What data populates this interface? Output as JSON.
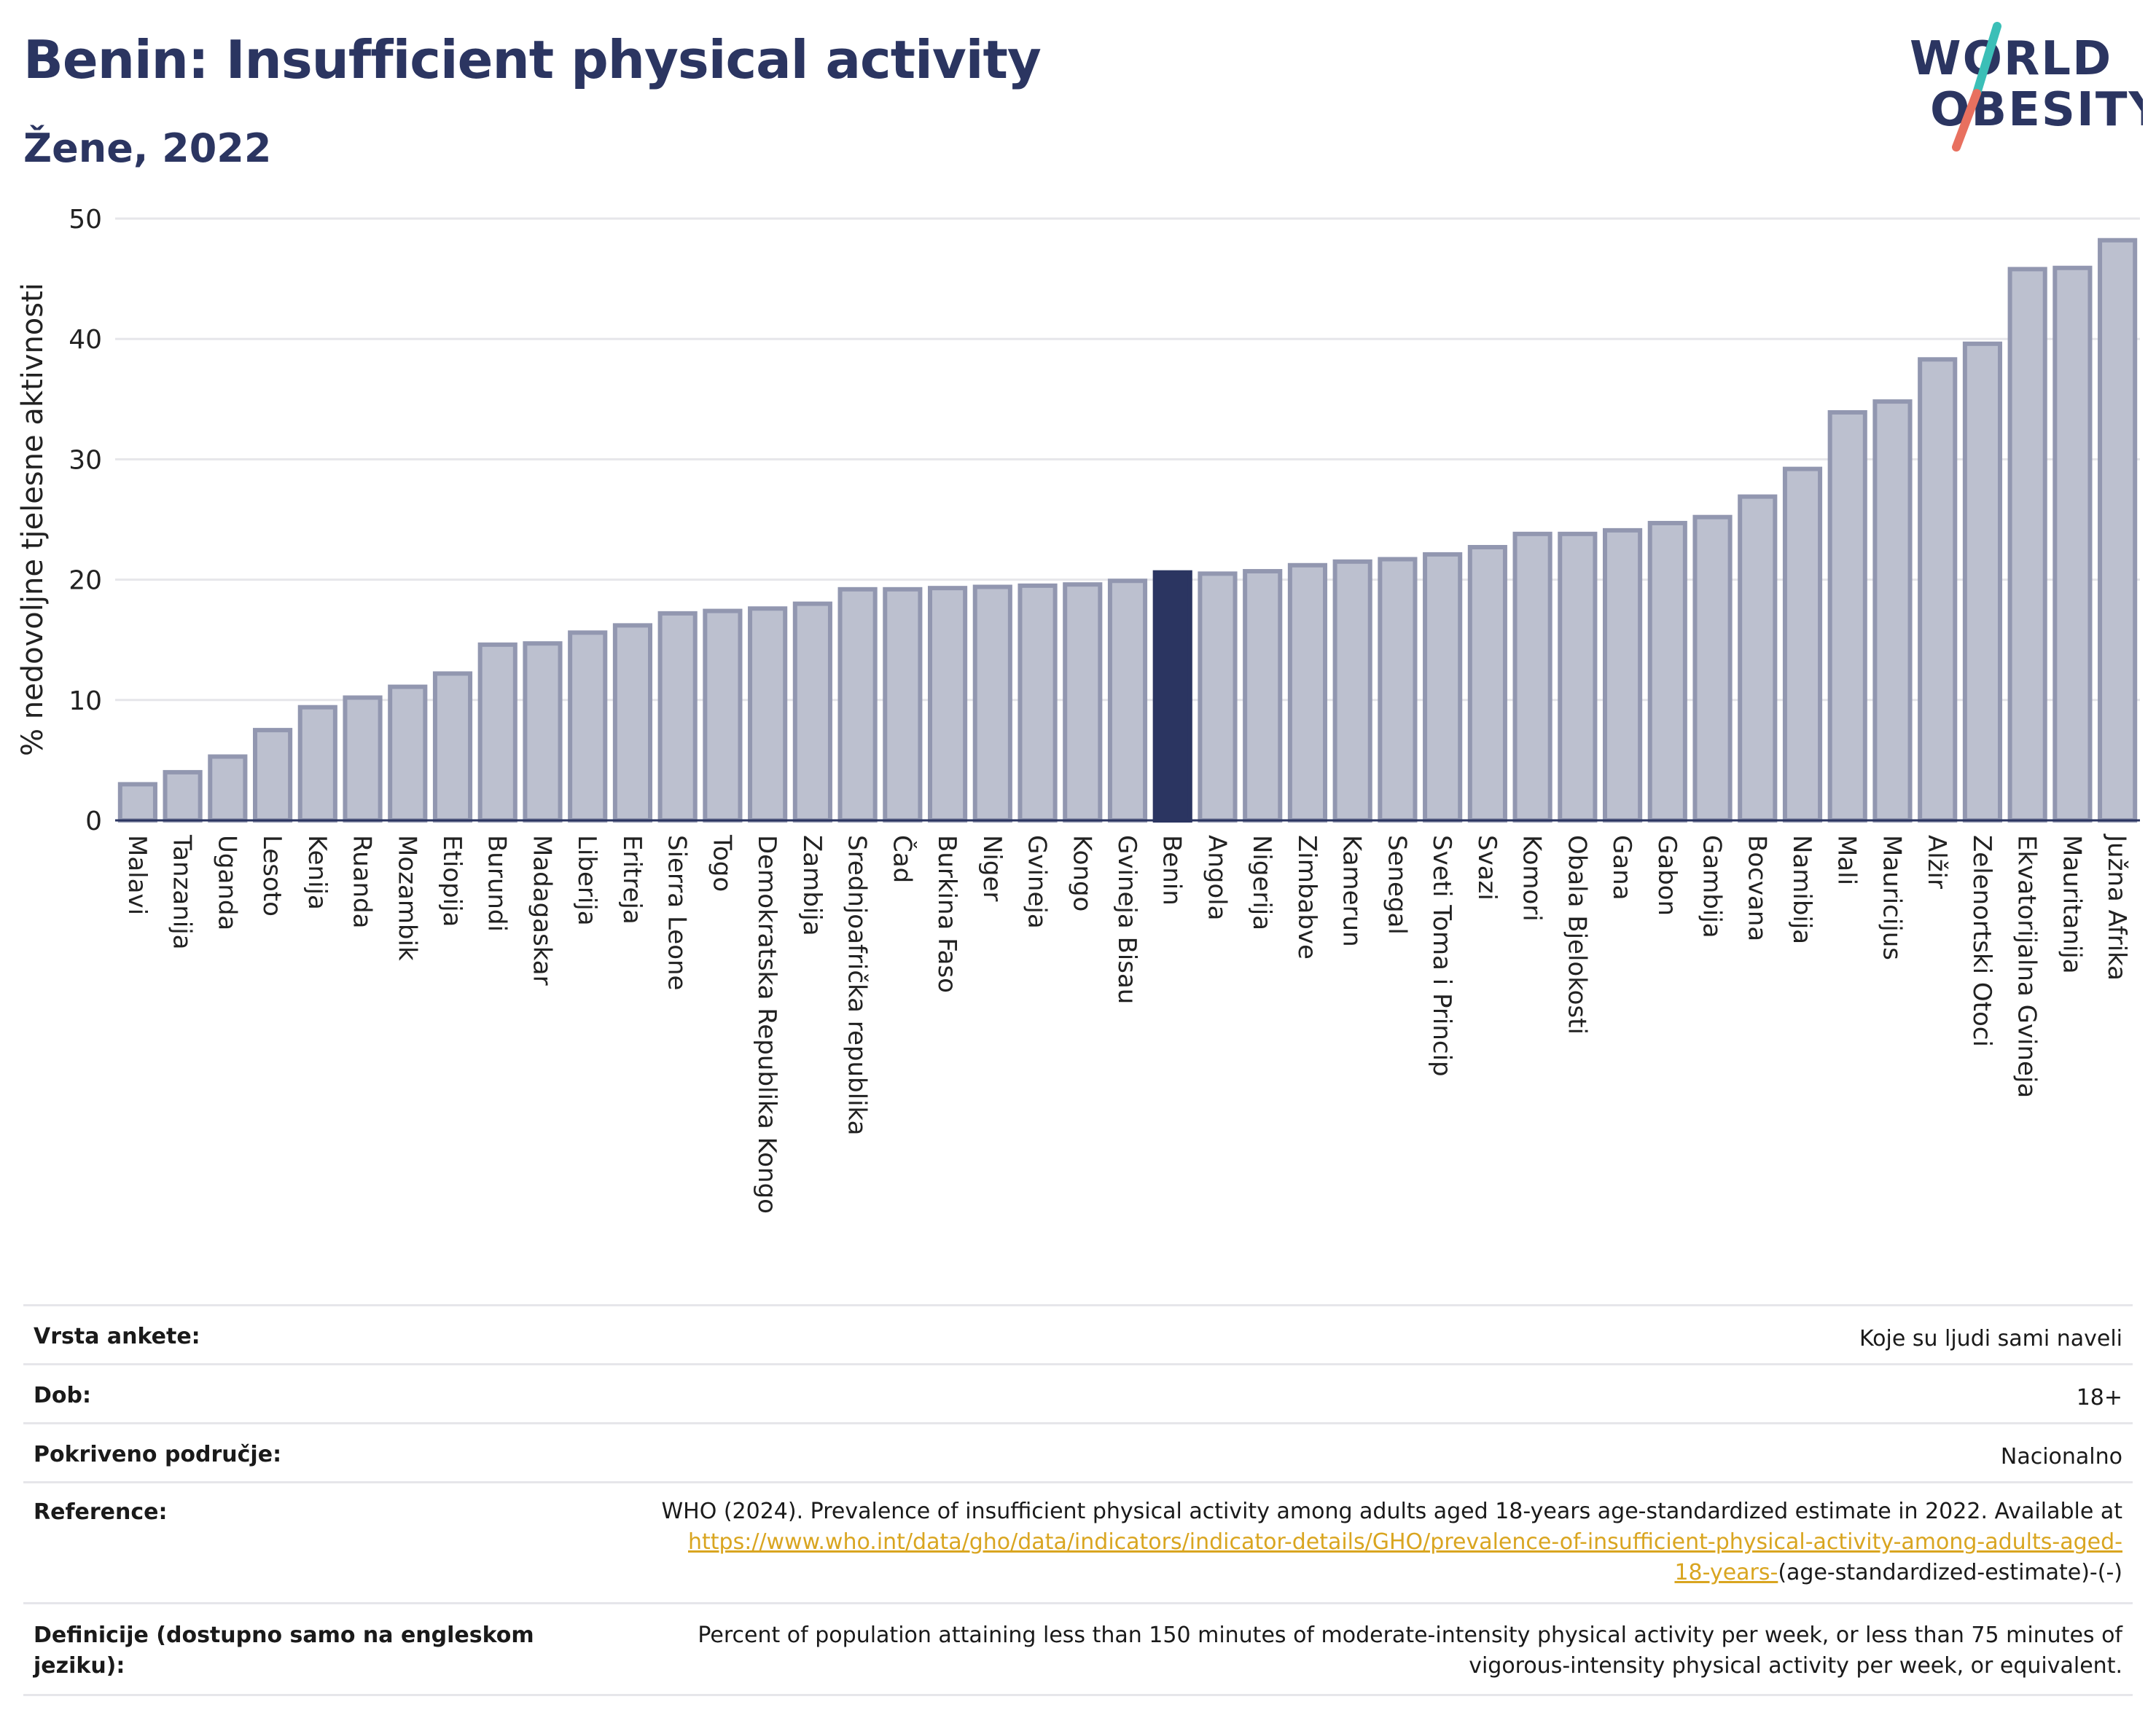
{
  "header": {
    "title": "Benin: Insufficient physical activity",
    "subtitle": "Žene, 2022",
    "logo_line1": "WORLD",
    "logo_line2": "OBESITY"
  },
  "colors": {
    "title": "#2b3561",
    "bar_default": "#bcc0cf",
    "bar_default_stroke": "#9297b0",
    "bar_highlight": "#2b3561",
    "logo_teal": "#3bbfb7",
    "logo_coral": "#e8705f",
    "link": "#d9a520"
  },
  "chart_data": {
    "type": "bar",
    "title": "",
    "xlabel": "",
    "ylabel": "% nedovoljne tjelesne aktivnosti",
    "ylim": [
      0,
      50
    ],
    "yticks": [
      0,
      10,
      20,
      30,
      40,
      50
    ],
    "grid": true,
    "highlight": "Benin",
    "categories": [
      "Malavi",
      "Tanzanija",
      "Uganda",
      "Lesoto",
      "Kenija",
      "Ruanda",
      "Mozambik",
      "Etiopija",
      "Burundi",
      "Madagaskar",
      "Liberija",
      "Eritreja",
      "Sierra Leone",
      "Togo",
      "Demokratska Republika Kongo",
      "Zambija",
      "Srednjoafrička republika",
      "Čad",
      "Burkina Faso",
      "Niger",
      "Gvineja",
      "Kongo",
      "Gvineja Bisau",
      "Benin",
      "Angola",
      "Nigerija",
      "Zimbabve",
      "Kamerun",
      "Senegal",
      "Sveti Toma i Princip",
      "Svazi",
      "Komori",
      "Obala Bjelokosti",
      "Gana",
      "Gabon",
      "Gambija",
      "Bocvana",
      "Namibija",
      "Mali",
      "Mauricijus",
      "Alžir",
      "Zelenortski Otoci",
      "Ekvatorijalna Gvineja",
      "Mauritanija",
      "Južna Afrika"
    ],
    "values": [
      3.0,
      4.0,
      5.3,
      7.5,
      9.4,
      10.2,
      11.1,
      12.2,
      14.6,
      14.7,
      15.6,
      16.2,
      17.2,
      17.4,
      17.6,
      18.0,
      19.2,
      19.2,
      19.3,
      19.4,
      19.5,
      19.6,
      19.9,
      20.6,
      20.5,
      20.7,
      21.2,
      21.5,
      21.7,
      22.1,
      22.7,
      23.8,
      23.8,
      24.1,
      24.7,
      25.2,
      26.9,
      29.2,
      33.9,
      34.8,
      38.3,
      39.6,
      45.8,
      45.9,
      48.2
    ]
  },
  "meta": {
    "survey_label": "Vrsta ankete:",
    "survey_value": "Koje su ljudi sami naveli",
    "age_label": "Dob:",
    "age_value": "18+",
    "coverage_label": "Pokriveno područje:",
    "coverage_value": "Nacionalno",
    "reference_label": "Reference:",
    "reference_text": "WHO (2024). Prevalence of insufficient physical activity among adults aged 18-years age-standardized estimate in 2022. Available at",
    "reference_link_1": "https://www.who.int/data/gho/data/indicators/indicator-details/GHO/prevalence-of-insufficient-physical-activity-among-adults-aged-",
    "reference_link_2": "18-years-",
    "reference_tail": "(age-standardized-estimate)-(-)",
    "definition_label": "Definicije (dostupno samo na engleskom jeziku):",
    "definition_text_1": "Percent of population attaining less than 150 minutes of moderate-intensity physical activity per week, or less than 75 minutes of",
    "definition_text_2": "vigorous-intensity physical activity per week, or equivalent."
  }
}
